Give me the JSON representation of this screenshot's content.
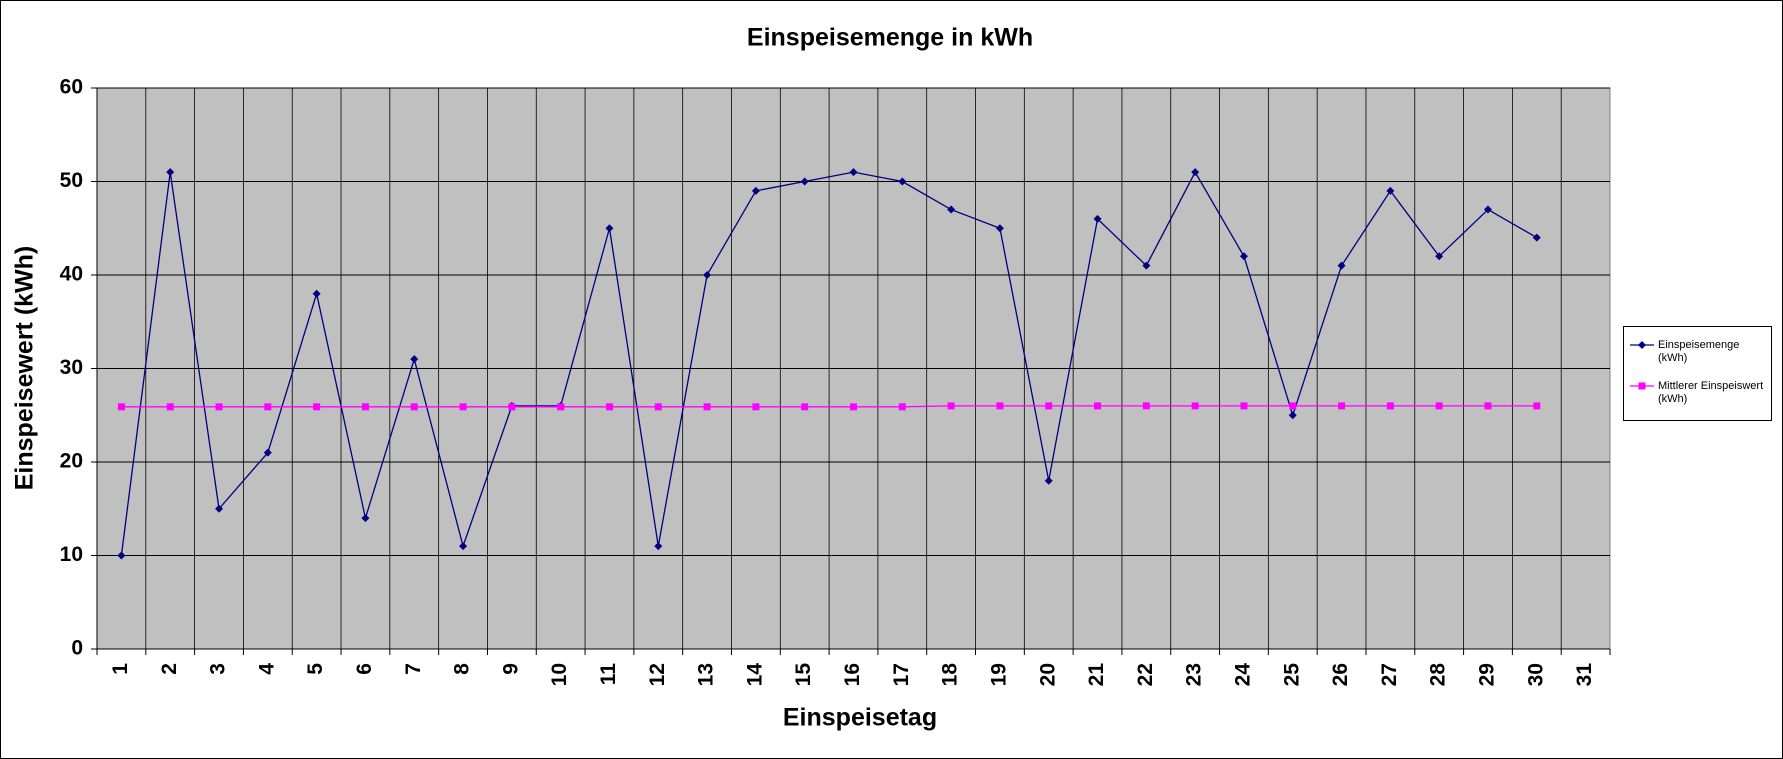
{
  "chart_data": {
    "type": "line",
    "title": "Einspeisemenge in kWh",
    "x_label": "Einspeisetag",
    "y_label": "Einspeisewert  (kWh)",
    "categories": [
      "1",
      "2",
      "3",
      "4",
      "5",
      "6",
      "7",
      "8",
      "9",
      "10",
      "11",
      "12",
      "13",
      "14",
      "15",
      "16",
      "17",
      "18",
      "19",
      "20",
      "21",
      "22",
      "23",
      "24",
      "25",
      "26",
      "27",
      "28",
      "29",
      "30",
      "31"
    ],
    "series": [
      {
        "name": "Einspeisemenge (kWh)",
        "color": "#000080",
        "marker": "diamond",
        "values": [
          10,
          51,
          15,
          21,
          38,
          14,
          31,
          11,
          26,
          26,
          45,
          11,
          40,
          49,
          50,
          51,
          50,
          47,
          45,
          18,
          46,
          41,
          51,
          42,
          25,
          41,
          49,
          42,
          47,
          44,
          null
        ]
      },
      {
        "name": "Mittlerer Einspeiswert (kWh)",
        "color": "#ff00ff",
        "marker": "square",
        "values": [
          25.9,
          25.9,
          25.9,
          25.9,
          25.9,
          25.9,
          25.9,
          25.9,
          25.9,
          25.9,
          25.9,
          25.9,
          25.9,
          25.9,
          25.9,
          25.9,
          25.9,
          26,
          26,
          26,
          26,
          26,
          26,
          26,
          26,
          26,
          26,
          26,
          26,
          26,
          null
        ]
      }
    ],
    "ylim": [
      0,
      60
    ],
    "yticks": [
      0,
      10,
      20,
      30,
      40,
      50,
      60
    ],
    "grid": true,
    "legend": "right"
  }
}
